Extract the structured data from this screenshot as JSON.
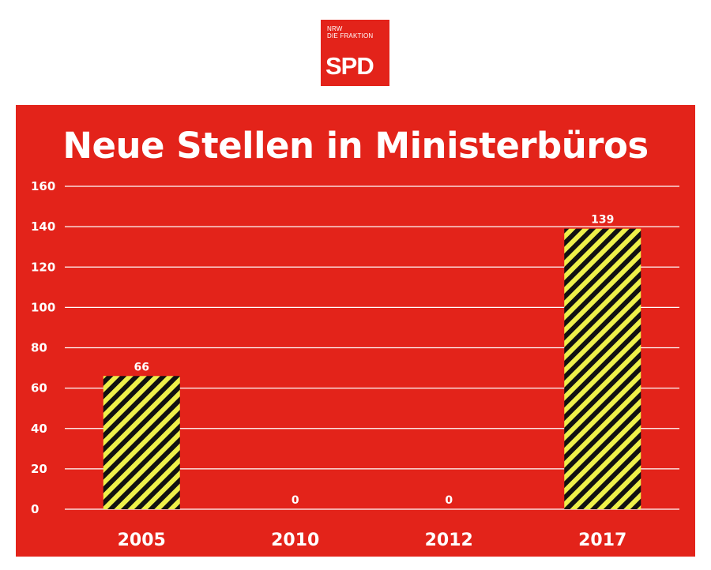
{
  "logo": {
    "line1": "NRW",
    "line2": "DIE FRAKTION",
    "main": "SPD"
  },
  "colors": {
    "panel": "#e3231a",
    "stripe_dark": "#111111",
    "stripe_light": "#eef04a",
    "grid": "#ffffff"
  },
  "chart_data": {
    "type": "bar",
    "title": "Neue Stellen in Ministerbüros",
    "categories": [
      "2005",
      "2010",
      "2012",
      "2017"
    ],
    "values": [
      66,
      0,
      0,
      139
    ],
    "data_labels": [
      "66",
      "0",
      "0",
      "139"
    ],
    "ylim": [
      0,
      160
    ],
    "yticks": [
      0,
      20,
      40,
      60,
      80,
      100,
      120,
      140,
      160
    ],
    "grid": true,
    "legend": "none",
    "bar_fill": "diagonal black/yellow stripes"
  }
}
